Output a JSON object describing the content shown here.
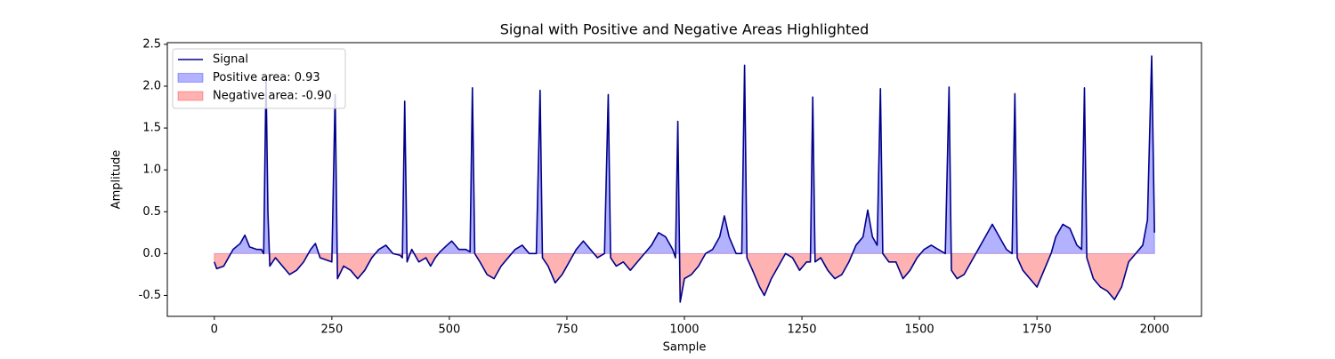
{
  "chart_data": {
    "type": "line",
    "title": "Signal with Positive and Negative Areas Highlighted",
    "xlabel": "Sample",
    "ylabel": "Amplitude",
    "x": [
      0,
      5,
      20,
      30,
      40,
      55,
      65,
      75,
      90,
      100,
      105,
      110,
      114,
      118,
      130,
      145,
      160,
      175,
      190,
      205,
      215,
      225,
      240,
      250,
      257,
      262,
      275,
      290,
      305,
      320,
      335,
      350,
      365,
      380,
      395,
      400,
      405,
      410,
      420,
      435,
      450,
      460,
      470,
      480,
      495,
      505,
      520,
      535,
      544,
      549,
      554,
      565,
      580,
      595,
      610,
      625,
      640,
      655,
      670,
      685,
      693,
      698,
      710,
      725,
      740,
      755,
      770,
      785,
      800,
      815,
      830,
      838,
      843,
      855,
      870,
      885,
      900,
      915,
      930,
      945,
      960,
      975,
      981,
      986,
      991,
      1000,
      1015,
      1030,
      1045,
      1060,
      1075,
      1085,
      1095,
      1110,
      1122,
      1128,
      1133,
      1145,
      1160,
      1170,
      1185,
      1200,
      1215,
      1230,
      1245,
      1260,
      1268,
      1273,
      1278,
      1290,
      1305,
      1320,
      1335,
      1350,
      1365,
      1380,
      1390,
      1400,
      1410,
      1417,
      1422,
      1435,
      1450,
      1465,
      1480,
      1495,
      1510,
      1525,
      1540,
      1555,
      1563,
      1568,
      1580,
      1595,
      1610,
      1625,
      1640,
      1655,
      1670,
      1685,
      1697,
      1703,
      1708,
      1720,
      1735,
      1750,
      1765,
      1780,
      1790,
      1805,
      1820,
      1835,
      1845,
      1851,
      1856,
      1870,
      1885,
      1900,
      1915,
      1930,
      1945,
      1960,
      1975,
      1985,
      1994,
      2000
    ],
    "series": [
      {
        "name": "Signal",
        "color": "#00008b",
        "values": [
          -0.1,
          -0.18,
          -0.15,
          -0.05,
          0.05,
          0.12,
          0.22,
          0.08,
          0.05,
          0.05,
          0.0,
          2.1,
          0.5,
          -0.15,
          -0.05,
          -0.15,
          -0.25,
          -0.2,
          -0.1,
          0.05,
          0.12,
          -0.05,
          -0.08,
          -0.1,
          1.9,
          -0.3,
          -0.15,
          -0.2,
          -0.3,
          -0.2,
          -0.05,
          0.05,
          0.1,
          0.0,
          -0.02,
          -0.05,
          1.82,
          -0.1,
          0.05,
          -0.1,
          -0.05,
          -0.15,
          -0.05,
          0.02,
          0.1,
          0.15,
          0.05,
          0.05,
          0.02,
          1.98,
          0.0,
          -0.1,
          -0.25,
          -0.3,
          -0.15,
          -0.05,
          0.05,
          0.1,
          0.0,
          0.0,
          1.95,
          -0.05,
          -0.15,
          -0.35,
          -0.25,
          -0.1,
          0.05,
          0.15,
          0.05,
          -0.05,
          0.0,
          1.9,
          -0.05,
          -0.15,
          -0.1,
          -0.2,
          -0.1,
          0.0,
          0.1,
          0.25,
          0.2,
          0.05,
          -0.05,
          1.58,
          -0.58,
          -0.3,
          -0.25,
          -0.15,
          0.0,
          0.05,
          0.2,
          0.45,
          0.2,
          0.0,
          0.0,
          2.25,
          -0.05,
          -0.2,
          -0.4,
          -0.5,
          -0.3,
          -0.15,
          0.0,
          -0.05,
          -0.2,
          -0.1,
          -0.1,
          1.87,
          -0.1,
          -0.05,
          -0.2,
          -0.3,
          -0.25,
          -0.1,
          0.1,
          0.2,
          0.52,
          0.2,
          0.1,
          1.97,
          0.0,
          -0.1,
          -0.1,
          -0.3,
          -0.2,
          -0.05,
          0.05,
          0.1,
          0.05,
          0.0,
          1.99,
          -0.2,
          -0.3,
          -0.25,
          -0.1,
          0.05,
          0.2,
          0.35,
          0.2,
          0.05,
          0.0,
          1.91,
          -0.05,
          -0.2,
          -0.3,
          -0.4,
          -0.2,
          0.0,
          0.2,
          0.35,
          0.3,
          0.1,
          0.05,
          1.98,
          -0.05,
          -0.3,
          -0.4,
          -0.45,
          -0.55,
          -0.4,
          -0.1,
          0.0,
          0.1,
          0.4,
          2.36,
          0.25
        ]
      }
    ],
    "fills": [
      {
        "name": "Positive area: 0.93",
        "color": "#0000ff"
      },
      {
        "name": "Negative area: -0.90",
        "color": "#ff0000"
      }
    ],
    "xlim": [
      -100,
      2100
    ],
    "xticks": [
      0,
      250,
      500,
      750,
      1000,
      1250,
      1500,
      1750,
      2000
    ],
    "ylim": [
      -0.75,
      2.52
    ],
    "yticks": [
      -0.5,
      {
        "value": 0,
        "label": "0.0"
      },
      0.5,
      {
        "value": 1,
        "label": "1.0"
      },
      1.5,
      {
        "value": 2,
        "label": "2.0"
      },
      2.5
    ],
    "legend": "upper left"
  }
}
